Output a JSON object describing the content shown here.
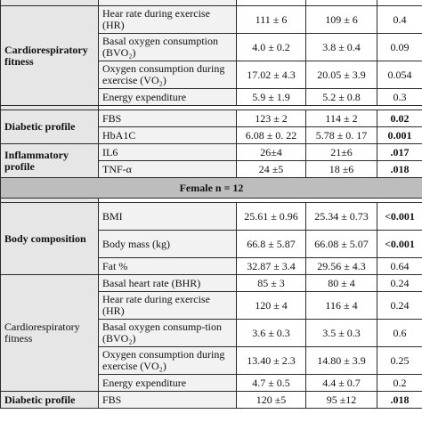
{
  "male": {
    "rows": [
      {
        "indicator": "",
        "v1": "",
        "v2": "",
        "p": ""
      },
      {
        "indicator": "Hear rate during exercise (HR)",
        "v1": "111 ± 6",
        "v2": "109 ± 6",
        "p": "0.4"
      },
      {
        "indicator": "Basal oxygen consumption (BVO₂)",
        "v1": "4.0 ± 0.2",
        "v2": "3.8 ± 0.4",
        "p": "0.09"
      },
      {
        "indicator": "Oxygen consumption during exercise (VO₂)",
        "v1": "17.02 ± 4.3",
        "v2": "20.05 ± 3.9",
        "p": "0.054"
      },
      {
        "indicator": "Energy expenditure",
        "v1": "5.9 ± 1.9",
        "v2": "5.2 ± 0.8",
        "p": "0.3"
      },
      {
        "indicator": "FBS",
        "v1": "123 ± 2",
        "v2": "114 ± 2",
        "p": "0.02"
      },
      {
        "indicator": "HbA1C",
        "v1": "6.08 ± 0. 22",
        "v2": "5.78 ± 0. 17",
        "p": "0.001"
      },
      {
        "indicator": "IL6",
        "v1": "26±4",
        "v2": "21±6",
        "p": ".017"
      },
      {
        "indicator": "TNF-α",
        "v1": "24 ±5",
        "v2": "18 ±6",
        "p": ".018"
      }
    ],
    "categories": {
      "cardio": "Cardiorespiratory fitness",
      "diabetic": "Diabetic profile",
      "inflammatory": "Inflammatory profile"
    }
  },
  "female": {
    "header": "Female n = 12",
    "categories": {
      "body": "Body composition",
      "cardio": "Cardiorespiratory fitness",
      "diabetic": "Diabetic profile"
    },
    "rows": [
      {
        "indicator": "BMI",
        "v1": "25.61 ± 0.96",
        "v2": "25.34 ± 0.73",
        "p": "<0.001"
      },
      {
        "indicator": "Body mass (kg)",
        "v1": "66.8 ± 5.87",
        "v2": "66.08 ± 5.07",
        "p": "<0.001"
      },
      {
        "indicator": "Fat %",
        "v1": "32.87 ± 3.4",
        "v2": "29.56 ± 4.3",
        "p": "0.64"
      },
      {
        "indicator": "Basal heart rate (BHR)",
        "v1": "85 ± 3",
        "v2": "80 ± 4",
        "p": "0.24"
      },
      {
        "indicator": "Hear rate during exercise (HR)",
        "v1": "120 ± 4",
        "v2": "116 ± 4",
        "p": "0.24"
      },
      {
        "indicator": "Basal oxygen consump-tion (BVO₂)",
        "v1": "3.6 ± 0.3",
        "v2": "3.5 ± 0.3",
        "p": "0.6"
      },
      {
        "indicator": "Oxygen consumption during exercise (VO₂)",
        "v1": "13.40 ± 2.3",
        "v2": "14.80 ± 3.9",
        "p": "0.25"
      },
      {
        "indicator": "Energy expenditure",
        "v1": "4.7 ± 0.5",
        "v2": "4.4 ± 0.7",
        "p": "0.2"
      },
      {
        "indicator": "FBS",
        "v1": "120 ±5",
        "v2": "95 ±12",
        "p": ".018"
      }
    ]
  }
}
